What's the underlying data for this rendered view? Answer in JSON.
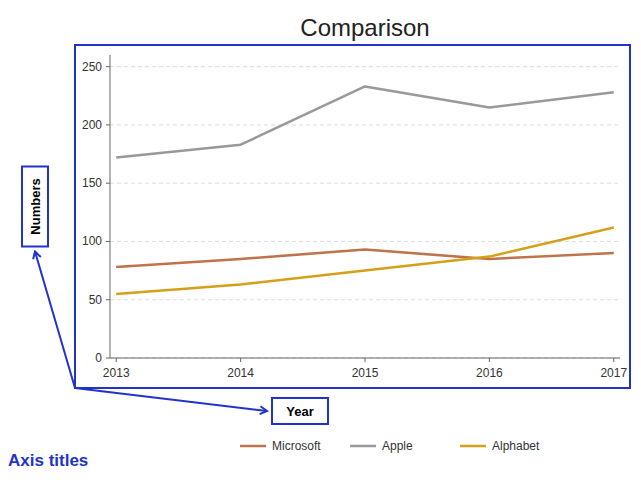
{
  "chart_data": {
    "type": "line",
    "title": "Comparison",
    "x_label": "Year",
    "y_label": "Numbers",
    "annotations": [
      "Axis titles"
    ],
    "x": [
      2013,
      2014,
      2015,
      2016,
      2017
    ],
    "series": [
      {
        "name": "Microsoft",
        "color": "#c0724a",
        "values": [
          78,
          85,
          93,
          85,
          90
        ]
      },
      {
        "name": "Apple",
        "color": "#999999",
        "values": [
          172,
          183,
          233,
          215,
          228
        ]
      },
      {
        "name": "Alphabet",
        "color": "#d4a017",
        "values": [
          55,
          63,
          75,
          87,
          112
        ]
      }
    ],
    "xlim": [
      2012.95,
      2017.05
    ],
    "xticks": [
      2013,
      2014,
      2015,
      2016,
      2017
    ],
    "ylim": [
      0,
      260
    ],
    "yticks": [
      0,
      50,
      100,
      150,
      200,
      250
    ],
    "grid": true,
    "legend": "bottom"
  }
}
